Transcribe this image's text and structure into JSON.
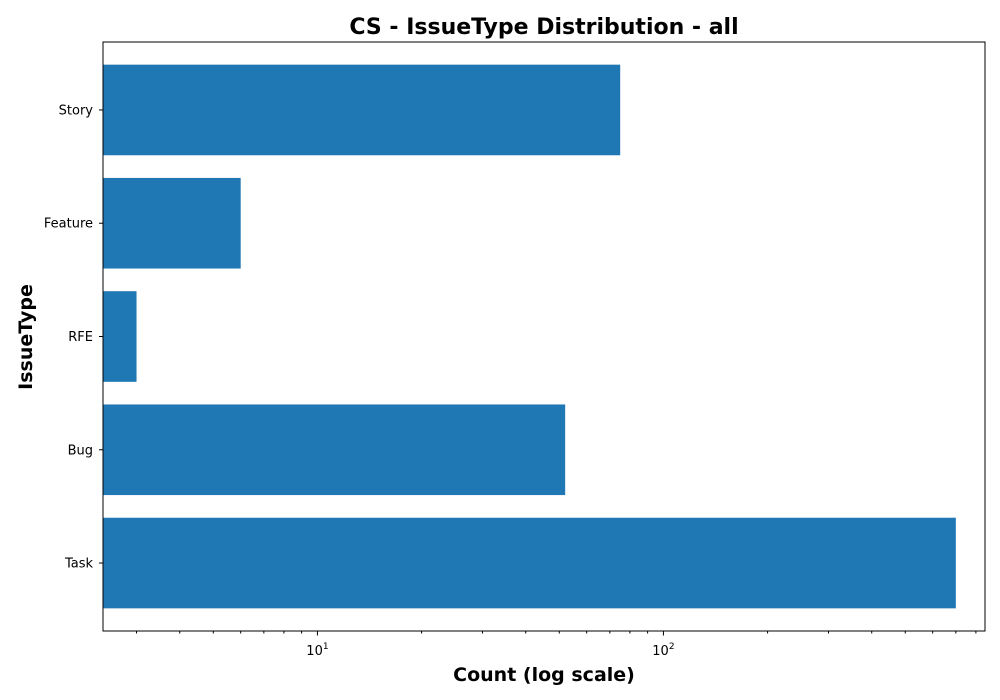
{
  "chart_data": {
    "type": "bar",
    "orientation": "horizontal",
    "title": "CS - IssueType Distribution - all",
    "xlabel": "Count (log scale)",
    "ylabel": "IssueType",
    "xscale": "log",
    "xlim": [
      2.4,
      850
    ],
    "categories": [
      "Task",
      "Bug",
      "RFE",
      "Feature",
      "Story"
    ],
    "values": [
      700,
      52,
      3,
      6,
      75
    ],
    "x_major_ticks": [
      {
        "value": 10,
        "base": "10",
        "exponent": "1"
      },
      {
        "value": 100,
        "base": "10",
        "exponent": "2"
      }
    ],
    "bar_color": "#1f77b4",
    "grid": false,
    "legend": "none"
  }
}
